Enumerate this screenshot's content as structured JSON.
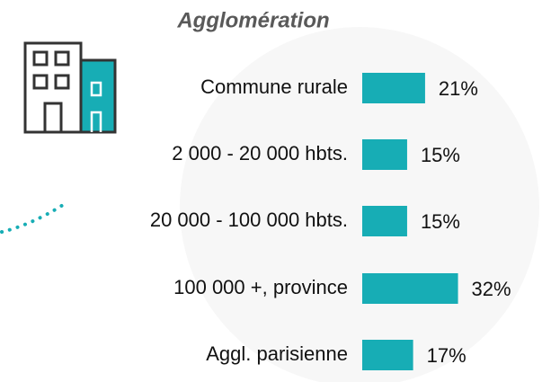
{
  "chart_data": {
    "type": "bar",
    "orientation": "horizontal",
    "title": "Agglomération",
    "categories": [
      "Commune rurale",
      "2 000 - 20 000 hbts.",
      "20 000 - 100 000 hbts.",
      "100 000 +, province",
      "Aggl. parisienne"
    ],
    "values": [
      21,
      15,
      15,
      32,
      17
    ],
    "value_labels": [
      "21%",
      "15%",
      "15%",
      "32%",
      "17%"
    ],
    "color": "#17adb5"
  }
}
